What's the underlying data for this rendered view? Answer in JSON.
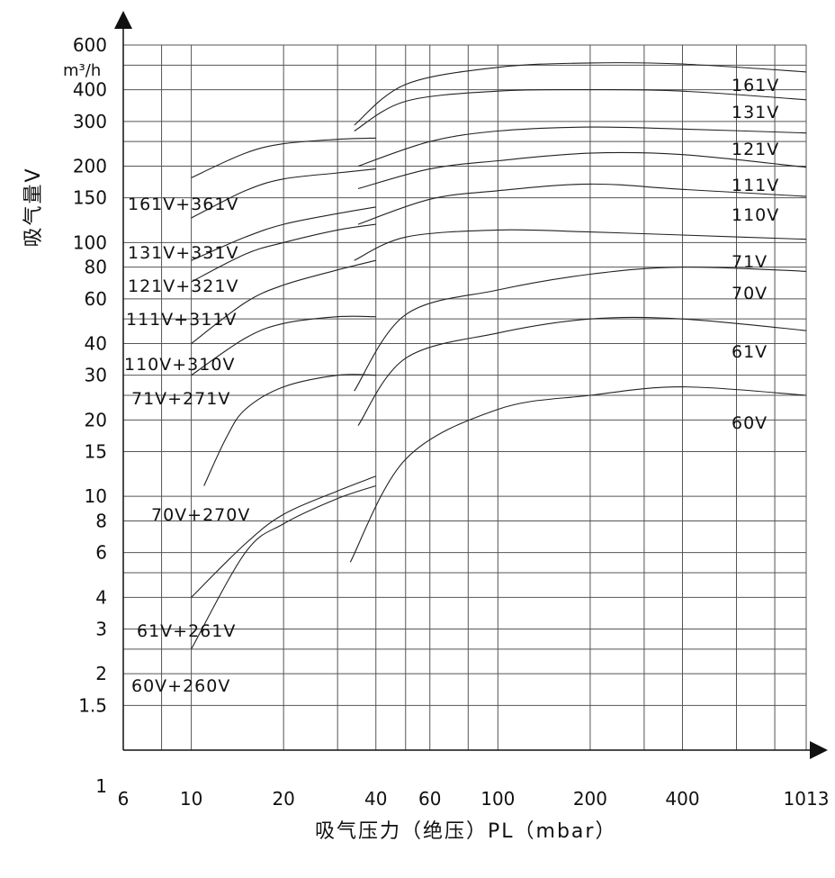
{
  "chart_data": {
    "type": "line",
    "x_scale": "log",
    "y_scale": "log",
    "xlabel": "吸气压力（绝压）PL（mbar）",
    "ylabel": "吸气量V",
    "y_unit": "m³/h",
    "xlim": [
      6,
      1013
    ],
    "ylim": [
      1,
      600
    ],
    "grid": true,
    "x_tick_labels": [
      "6",
      "10",
      "20",
      "40",
      "60",
      "100",
      "200",
      "400",
      "1013"
    ],
    "y_tick_labels": [
      "600",
      "400",
      "300",
      "200",
      "150",
      "100",
      "80",
      "60",
      "40",
      "30",
      "20",
      "15",
      "10",
      "8",
      "6",
      "4",
      "3",
      "2",
      "1.5",
      "1"
    ],
    "series": [
      {
        "name": "161V",
        "x": [
          34,
          50,
          100,
          200,
          400,
          1013
        ],
        "y": [
          290,
          420,
          490,
          510,
          505,
          470
        ]
      },
      {
        "name": "131V",
        "x": [
          34,
          50,
          100,
          200,
          400,
          1013
        ],
        "y": [
          275,
          360,
          395,
          400,
          395,
          365
        ]
      },
      {
        "name": "121V",
        "x": [
          35,
          60,
          100,
          200,
          400,
          1013
        ],
        "y": [
          200,
          250,
          275,
          285,
          280,
          270
        ]
      },
      {
        "name": "111V",
        "x": [
          35,
          60,
          100,
          200,
          400,
          1013
        ],
        "y": [
          163,
          195,
          210,
          225,
          222,
          198
        ]
      },
      {
        "name": "110V",
        "x": [
          35,
          60,
          100,
          200,
          400,
          1013
        ],
        "y": [
          118,
          148,
          160,
          170,
          162,
          152
        ]
      },
      {
        "name": "71V",
        "x": [
          34,
          50,
          100,
          200,
          400,
          1013
        ],
        "y": [
          85,
          105,
          112,
          110,
          107,
          103
        ]
      },
      {
        "name": "70V",
        "x": [
          34,
          50,
          100,
          200,
          400,
          1013
        ],
        "y": [
          26,
          52,
          65,
          75,
          80,
          77
        ]
      },
      {
        "name": "61V",
        "x": [
          35,
          50,
          100,
          200,
          400,
          1013
        ],
        "y": [
          19,
          35,
          44,
          50,
          50,
          45
        ]
      },
      {
        "name": "60V",
        "x": [
          33,
          50,
          100,
          200,
          400,
          1013
        ],
        "y": [
          5.5,
          14,
          22,
          25,
          27,
          25
        ]
      },
      {
        "name": "161V+361V",
        "x": [
          10,
          15,
          20,
          30,
          40
        ],
        "y": [
          180,
          225,
          245,
          255,
          258
        ]
      },
      {
        "name": "131V+331V",
        "x": [
          10,
          15,
          20,
          30,
          40
        ],
        "y": [
          125,
          160,
          178,
          188,
          195
        ]
      },
      {
        "name": "121V+321V",
        "x": [
          10,
          15,
          20,
          30,
          40
        ],
        "y": [
          85,
          105,
          118,
          130,
          138
        ]
      },
      {
        "name": "111V+311V",
        "x": [
          10,
          15,
          20,
          30,
          40
        ],
        "y": [
          70,
          90,
          100,
          112,
          118
        ]
      },
      {
        "name": "110V+310V",
        "x": [
          10,
          15,
          20,
          30,
          40
        ],
        "y": [
          40,
          58,
          68,
          78,
          85
        ]
      },
      {
        "name": "71V+271V",
        "x": [
          10,
          15,
          20,
          30,
          40
        ],
        "y": [
          30,
          42,
          48,
          51,
          51
        ]
      },
      {
        "name": "70V+270V",
        "x": [
          11,
          13,
          15,
          20,
          30,
          40
        ],
        "y": [
          11,
          17,
          22,
          27,
          30,
          30
        ]
      },
      {
        "name": "61V+261V",
        "x": [
          10,
          15,
          20,
          30,
          40
        ],
        "y": [
          4,
          6.5,
          8.5,
          10.5,
          12
        ]
      },
      {
        "name": "60V+260V",
        "x": [
          10,
          15,
          20,
          30,
          40
        ],
        "y": [
          2.5,
          6,
          7.8,
          9.8,
          11
        ]
      }
    ]
  }
}
